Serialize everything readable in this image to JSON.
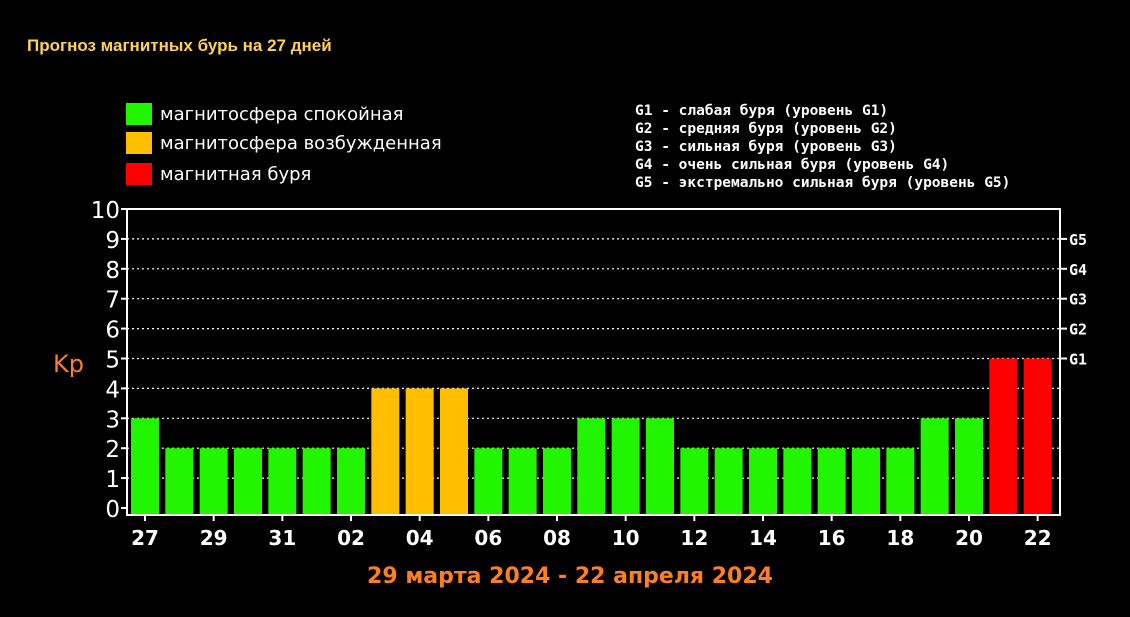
{
  "page": {
    "title": "Прогноз магнитных бурь на 27 дней"
  },
  "legend": [
    {
      "label": "магнитосфера спокойная",
      "color": "#22f500"
    },
    {
      "label": "магнитосфера возбужденная",
      "color": "#ffbf00"
    },
    {
      "label": "магнитная буря",
      "color": "#ff0000"
    }
  ],
  "g_levels": [
    "G1 - слабая буря (уровень G1)",
    "G2 - средняя буря (уровень G2)",
    "G3 - сильная буря (уровень G3)",
    "G4 - очень сильная буря (уровень G4)",
    "G5 - экстремально сильная буря (уровень G5)"
  ],
  "chart_data": {
    "type": "bar",
    "ylabel": "Kp",
    "xlabel": "29 марта 2024 - 22 апреля 2024",
    "ylim": [
      0,
      10
    ],
    "yticks": [
      "0",
      "1",
      "2",
      "3",
      "4",
      "5",
      "6",
      "7",
      "8",
      "9",
      "10"
    ],
    "right_axis_labels": [
      {
        "kp": 5,
        "label": "G1"
      },
      {
        "kp": 6,
        "label": "G2"
      },
      {
        "kp": 7,
        "label": "G3"
      },
      {
        "kp": 8,
        "label": "G4"
      },
      {
        "kp": 9,
        "label": "G5"
      }
    ],
    "xtick_labels": [
      "27",
      "29",
      "31",
      "02",
      "04",
      "06",
      "08",
      "10",
      "12",
      "14",
      "16",
      "18",
      "20",
      "22"
    ],
    "values": [
      3,
      2,
      2,
      2,
      2,
      2,
      2,
      4,
      4,
      4,
      2,
      2,
      2,
      3,
      3,
      3,
      2,
      2,
      2,
      2,
      2,
      2,
      2,
      3,
      3,
      5,
      5
    ],
    "levels": [
      "quiet",
      "quiet",
      "quiet",
      "quiet",
      "quiet",
      "quiet",
      "quiet",
      "active",
      "active",
      "active",
      "quiet",
      "quiet",
      "quiet",
      "quiet",
      "quiet",
      "quiet",
      "quiet",
      "quiet",
      "quiet",
      "quiet",
      "quiet",
      "quiet",
      "quiet",
      "quiet",
      "quiet",
      "storm",
      "storm"
    ],
    "colors": {
      "quiet": "#22f500",
      "active": "#ffbf00",
      "storm": "#ff0000"
    },
    "grid": true
  }
}
